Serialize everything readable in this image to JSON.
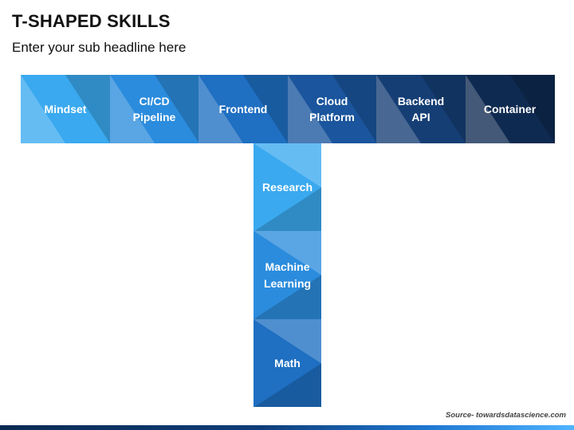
{
  "header": {
    "title": "T-SHAPED SKILLS",
    "subtitle": "Enter your sub headline here"
  },
  "t_diagram": {
    "horizontal": [
      {
        "label": "Mindset",
        "color": "#3aa9ef"
      },
      {
        "label": "CI/CD\nPipeline",
        "color": "#2b8cdd"
      },
      {
        "label": "Frontend",
        "color": "#1f6fc2"
      },
      {
        "label": "Cloud\nPlatform",
        "color": "#1a559d"
      },
      {
        "label": "Backend\nAPI",
        "color": "#153e75"
      },
      {
        "label": "Container",
        "color": "#0f2a50"
      }
    ],
    "vertical": [
      {
        "label": "Research",
        "color": "#3aa9ef"
      },
      {
        "label": "Machine\nLearning",
        "color": "#2b8cdd"
      },
      {
        "label": "Math",
        "color": "#1f6fc2"
      }
    ]
  },
  "footer": {
    "source": "Source- towardsdatascience.com"
  }
}
